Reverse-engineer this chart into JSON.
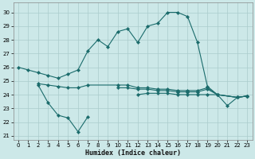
{
  "xlabel": "Humidex (Indice chaleur)",
  "bg_color": "#cce8e8",
  "grid_color": "#aacccc",
  "line_color": "#1a6b6b",
  "xlim": [
    -0.5,
    23.5
  ],
  "ylim": [
    20.7,
    30.7
  ],
  "yticks": [
    21,
    22,
    23,
    24,
    25,
    26,
    27,
    28,
    29,
    30
  ],
  "xticks": [
    0,
    1,
    2,
    3,
    4,
    5,
    6,
    7,
    8,
    9,
    10,
    11,
    12,
    13,
    14,
    15,
    16,
    17,
    18,
    19,
    20,
    21,
    22,
    23
  ],
  "line1_x": [
    0,
    1,
    2,
    3,
    4,
    5,
    6,
    7,
    8,
    9,
    10,
    11,
    12,
    13,
    14,
    15,
    16,
    17,
    18,
    19,
    20,
    21,
    22,
    23
  ],
  "line1_y": [
    26.0,
    25.8,
    25.6,
    25.4,
    25.2,
    25.5,
    25.8,
    27.2,
    28.0,
    27.5,
    28.6,
    28.8,
    27.8,
    29.0,
    29.2,
    30.0,
    30.0,
    29.7,
    27.8,
    24.6,
    24.0,
    23.2,
    23.8,
    23.9
  ],
  "line2_x": [
    2,
    3,
    4,
    5,
    6,
    7
  ],
  "line2_y": [
    24.7,
    23.4,
    22.5,
    22.3,
    21.3,
    22.4
  ],
  "line3_x": [
    2,
    3,
    4,
    5,
    6,
    7,
    10,
    11,
    12,
    13,
    14,
    15,
    16,
    17,
    18,
    19,
    20,
    22,
    23
  ],
  "line3_y": [
    24.8,
    24.7,
    24.6,
    24.5,
    24.5,
    24.7,
    24.7,
    24.7,
    24.5,
    24.5,
    24.4,
    24.4,
    24.3,
    24.3,
    24.3,
    24.5,
    24.0,
    23.8,
    23.9
  ],
  "line4_x": [
    10,
    11,
    12,
    13,
    14,
    15,
    16,
    17,
    18,
    19,
    20,
    22,
    23
  ],
  "line4_y": [
    24.5,
    24.5,
    24.4,
    24.4,
    24.3,
    24.3,
    24.2,
    24.2,
    24.2,
    24.4,
    24.0,
    23.8,
    23.9
  ],
  "line5_x": [
    12,
    13,
    14,
    15,
    16,
    17,
    18,
    19,
    20,
    22,
    23
  ],
  "line5_y": [
    24.0,
    24.1,
    24.1,
    24.1,
    24.0,
    24.0,
    24.0,
    24.0,
    24.0,
    23.8,
    23.9
  ]
}
